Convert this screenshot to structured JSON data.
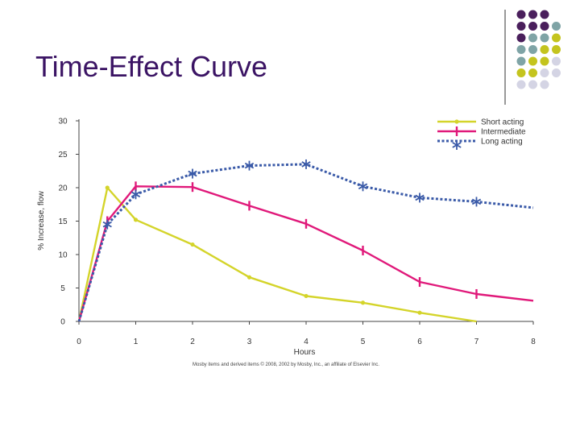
{
  "slide": {
    "title": "Time-Effect Curve",
    "credit": "Mosby items and derived items © 2008, 2002 by Mosby, Inc., an affiliate of Elsevier Inc."
  },
  "decor": {
    "palette": [
      "#4a1f5c",
      "#7fa4a6",
      "#c4c41e",
      "#d4d4e4"
    ],
    "rows": [
      [
        "#4a1f5c",
        "#4a1f5c",
        "#4a1f5c"
      ],
      [
        "#4a1f5c",
        "#4a1f5c",
        "#4a1f5c",
        "#7fa4a6"
      ],
      [
        "#4a1f5c",
        "#7fa4a6",
        "#7fa4a6",
        "#c4c41e"
      ],
      [
        "#7fa4a6",
        "#7fa4a6",
        "#c4c41e",
        "#c4c41e"
      ],
      [
        "#7fa4a6",
        "#c4c41e",
        "#c4c41e",
        "#d4d4e4"
      ],
      [
        "#c4c41e",
        "#c4c41e",
        "#d4d4e4",
        "#d4d4e4"
      ],
      [
        "#d4d4e4",
        "#d4d4e4",
        "#d4d4e4"
      ]
    ]
  },
  "chart_data": {
    "type": "line",
    "xlabel": "Hours",
    "ylabel": "% Increase, flow",
    "xlim": [
      0,
      8
    ],
    "ylim": [
      0,
      30
    ],
    "xticks": [
      0,
      1,
      2,
      3,
      4,
      5,
      6,
      7,
      8
    ],
    "yticks": [
      0,
      5,
      10,
      15,
      20,
      25,
      30
    ],
    "grid": false,
    "legend_position": "top-right",
    "series": [
      {
        "name": "Short acting",
        "color": "#d4d42a",
        "style": "solid",
        "marker": "dot",
        "x": [
          0,
          0.5,
          1,
          2,
          3,
          4,
          5,
          6,
          7
        ],
        "y": [
          0,
          20,
          15.2,
          11.5,
          6.6,
          3.8,
          2.8,
          1.3,
          0
        ]
      },
      {
        "name": "Intermediate",
        "color": "#e0197a",
        "style": "solid",
        "marker": "tick",
        "x": [
          0,
          0.5,
          1,
          2,
          3,
          4,
          5,
          6,
          7,
          8
        ],
        "y": [
          0,
          15,
          20.2,
          20.1,
          17.3,
          14.6,
          10.6,
          5.9,
          4.1,
          3.1
        ]
      },
      {
        "name": "Long acting",
        "color": "#3a5aa8",
        "style": "dotted",
        "marker": "asterisk",
        "x": [
          0,
          0.5,
          1,
          2,
          3,
          4,
          5,
          6,
          7,
          8
        ],
        "y": [
          0,
          14.5,
          19,
          22.1,
          23.3,
          23.5,
          20.2,
          18.5,
          17.9,
          17
        ]
      }
    ]
  }
}
